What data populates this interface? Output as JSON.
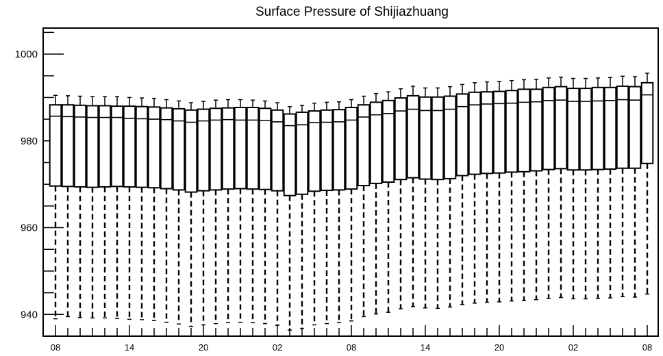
{
  "chart_data": {
    "type": "box",
    "title": "Surface Pressure of Shijiazhuang",
    "xlabel": "",
    "ylabel": "",
    "ylim": [
      935,
      1006
    ],
    "yticks": [
      940,
      960,
      980,
      1000
    ],
    "xtick_labels": [
      "08",
      "14",
      "20",
      "02",
      "08",
      "14",
      "20",
      "02",
      "08"
    ],
    "boxes": {
      "count": 49,
      "q3": [
        988.3,
        988.3,
        988.2,
        988.1,
        988.1,
        988.0,
        988.0,
        987.9,
        987.8,
        987.6,
        987.4,
        987.1,
        987.3,
        987.5,
        987.6,
        987.7,
        987.7,
        987.5,
        987.1,
        986.2,
        986.6,
        986.9,
        987.1,
        987.2,
        987.7,
        988.3,
        988.9,
        989.3,
        989.9,
        990.4,
        990.1,
        990.1,
        990.3,
        990.8,
        991.2,
        991.3,
        991.4,
        991.6,
        991.9,
        991.9,
        992.3,
        992.5,
        992.1,
        992.1,
        992.3,
        992.3,
        992.6,
        992.5,
        993.4
      ],
      "median": [
        985.7,
        985.6,
        985.5,
        985.4,
        985.4,
        985.4,
        985.2,
        985.1,
        985.0,
        984.9,
        984.6,
        984.3,
        984.6,
        984.8,
        984.9,
        984.8,
        984.8,
        984.7,
        984.4,
        983.5,
        983.7,
        984.2,
        984.3,
        984.4,
        984.8,
        985.5,
        986.0,
        986.3,
        986.9,
        987.3,
        987.0,
        987.0,
        987.3,
        987.9,
        988.3,
        988.5,
        988.6,
        988.7,
        988.9,
        989.0,
        989.3,
        989.4,
        989.1,
        989.1,
        989.2,
        989.3,
        989.5,
        989.4,
        990.6
      ],
      "q1": [
        969.6,
        969.5,
        969.4,
        969.3,
        969.4,
        969.5,
        969.4,
        969.3,
        969.2,
        969.0,
        968.7,
        968.2,
        968.5,
        968.7,
        968.9,
        969.0,
        968.9,
        968.8,
        968.5,
        967.4,
        967.7,
        968.4,
        968.6,
        968.7,
        968.9,
        969.7,
        970.2,
        970.5,
        971.1,
        971.5,
        971.2,
        971.1,
        971.3,
        972.0,
        972.3,
        972.5,
        972.6,
        972.8,
        972.9,
        973.1,
        973.4,
        973.6,
        973.3,
        973.3,
        973.4,
        973.5,
        973.7,
        973.7,
        974.8
      ],
      "upper_whisker": [
        990.5,
        990.4,
        990.3,
        990.2,
        990.2,
        990.2,
        990.0,
        989.9,
        989.8,
        989.5,
        989.2,
        988.8,
        989.1,
        989.4,
        989.5,
        989.5,
        989.4,
        989.2,
        988.8,
        987.9,
        988.2,
        988.7,
        988.9,
        989.0,
        989.5,
        990.3,
        990.9,
        991.3,
        992.0,
        992.6,
        992.2,
        992.2,
        992.5,
        993.0,
        993.4,
        993.6,
        993.7,
        993.9,
        994.1,
        994.2,
        994.5,
        994.7,
        994.4,
        994.4,
        994.5,
        994.6,
        994.9,
        994.8,
        995.6
      ],
      "lower_whisker": [
        939.0,
        939.5,
        939.3,
        939.2,
        939.2,
        939.1,
        938.9,
        938.8,
        938.6,
        938.2,
        937.8,
        937.2,
        937.6,
        937.9,
        938.1,
        938.2,
        938.1,
        937.9,
        937.5,
        936.4,
        936.8,
        937.6,
        937.9,
        938.1,
        938.5,
        939.5,
        940.1,
        940.5,
        941.3,
        941.8,
        941.5,
        941.4,
        941.7,
        942.3,
        942.6,
        942.8,
        942.9,
        943.1,
        943.2,
        943.4,
        943.7,
        943.9,
        943.6,
        943.6,
        943.7,
        943.8,
        944.1,
        944.0,
        944.7
      ]
    }
  }
}
